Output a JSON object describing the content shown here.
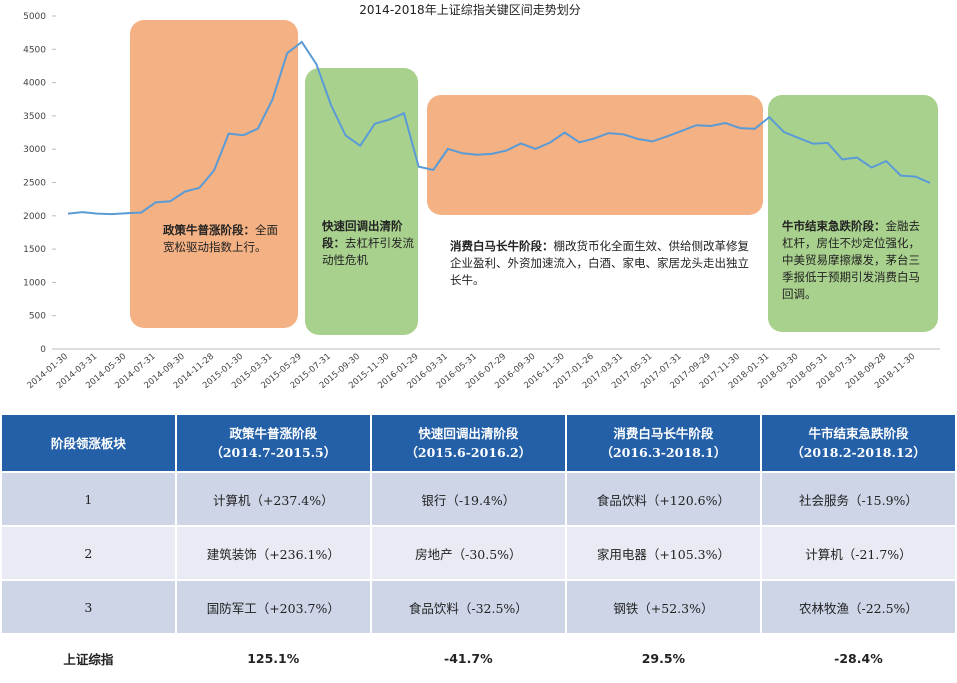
{
  "chart_data": {
    "type": "line",
    "title": "2014-2018年上证综指关键区间走势划分",
    "color": "#5b9bd5",
    "categories": [
      "2014-01-30",
      null,
      "2014-03-31",
      null,
      "2014-05-30",
      null,
      "2014-07-31",
      null,
      "2014-09-30",
      null,
      "2014-11-28",
      null,
      "2015-01-30",
      null,
      "2015-03-31",
      null,
      "2015-05-29",
      null,
      "2015-07-31",
      null,
      "2015-09-30",
      null,
      "2015-11-30",
      null,
      "2016-01-29",
      null,
      "2016-03-31",
      null,
      "2016-05-31",
      null,
      "2016-07-29",
      null,
      "2016-09-30",
      null,
      "2016-11-30",
      null,
      "2017-01-26",
      null,
      "2017-03-31",
      null,
      "2017-05-31",
      null,
      "2017-07-31",
      null,
      "2017-09-29",
      null,
      "2017-11-30",
      null,
      "2018-01-31",
      null,
      "2018-03-30",
      null,
      "2018-05-31",
      null,
      "2018-07-31",
      null,
      "2018-09-28",
      null,
      "2018-11-30",
      null
    ],
    "values": [
      2033,
      2056,
      2033,
      2026,
      2039,
      2048,
      2201,
      2217,
      2363,
      2420,
      2682,
      3234,
      3210,
      3310,
      3748,
      4441,
      4611,
      4277,
      3664,
      3206,
      3053,
      3383,
      3445,
      3539,
      2738,
      2688,
      3004,
      2938,
      2917,
      2930,
      2979,
      3085,
      3005,
      3100,
      3250,
      3104,
      3159,
      3242,
      3223,
      3155,
      3117,
      3192,
      3273,
      3361,
      3349,
      3393,
      3317,
      3307,
      3481,
      3259,
      3169,
      3082,
      3095,
      2847,
      2876,
      2725,
      2821,
      2603,
      2588,
      2494
    ],
    "ylim": [
      0,
      5000
    ],
    "yticks": [
      0,
      500,
      1000,
      1500,
      2000,
      2500,
      3000,
      3500,
      4000,
      4500,
      5000
    ],
    "annotations": [
      {
        "title": "政策牛普涨阶段：",
        "text": "全面宽松驱动指数上行。",
        "color": "#f4b183"
      },
      {
        "title": "快速回调出清阶段：",
        "text": "去杠杆引发流动性危机",
        "color": "#a9d18e"
      },
      {
        "title": "消费白马长牛阶段：",
        "text": "棚改货币化全面生效、供给侧改革修复企业盈利、外资加速流入，白酒、家电、家居龙头走出独立长牛。",
        "color": "#f4b183"
      },
      {
        "title": "牛市结束急跌阶段：",
        "text": "金融去杠杆，房住不炒定位强化，中美贸易摩擦爆发，茅台三季报低于预期引发消费白马回调。",
        "color": "#a9d18e"
      }
    ]
  },
  "table": {
    "header": [
      "阶段领涨板块",
      "政策牛普涨阶段\n（2014.7-2015.5）",
      "快速回调出清阶段\n（2015.6-2016.2）",
      "消费白马长牛阶段\n（2016.3-2018.1）",
      "牛市结束急跌阶段\n（2018.2-2018.12）"
    ],
    "rows": [
      [
        "1",
        "计算机（+237.4%）",
        "银行（-19.4%）",
        "食品饮料（+120.6%）",
        "社会服务（-15.9%）"
      ],
      [
        "2",
        "建筑装饰（+236.1%）",
        "房地产（-30.5%）",
        "家用电器（+105.3%）",
        "计算机（-21.7%）"
      ],
      [
        "3",
        "国防军工（+203.7%）",
        "食品饮料（-32.5%）",
        "钢铁（+52.3%）",
        "农林牧渔（-22.5%）"
      ],
      [
        "上证综指",
        "125.1%",
        "-41.7%",
        "29.5%",
        "-28.4%"
      ]
    ]
  }
}
